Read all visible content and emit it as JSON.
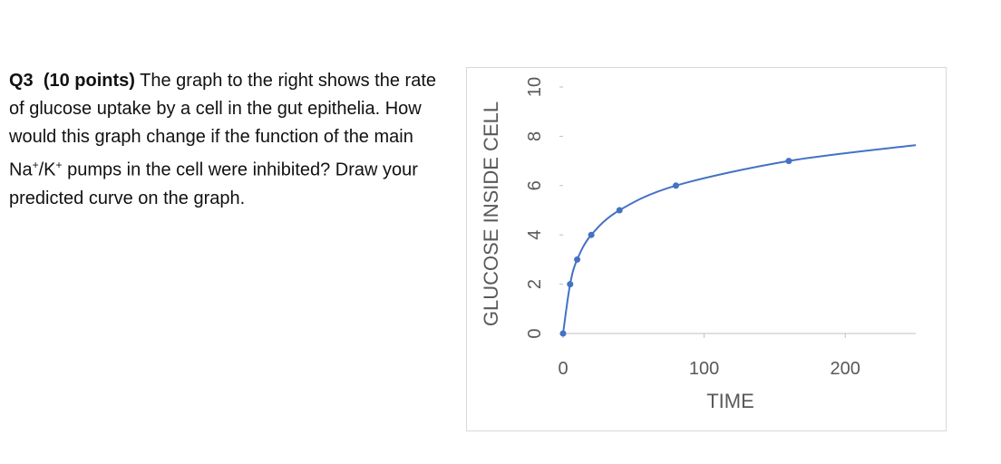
{
  "question": {
    "label": "Q3",
    "points": "(10 points)",
    "text_before_ions": "The graph to the right shows the rate of glucose uptake by a cell in the gut epithelia. How would this graph change if the function of the main Na",
    "sup1": "+",
    "slash_k": "/K",
    "sup2": "+",
    "text_after_ions": " pumps in the cell were inhibited? Draw your predicted curve on the graph."
  },
  "chart_data": {
    "type": "scatter",
    "title": "",
    "xlabel": "TIME",
    "ylabel": "GLUCOSE INSIDE CELL",
    "xlim": [
      0,
      250
    ],
    "ylim": [
      0,
      10
    ],
    "x_ticks": [
      0,
      100,
      200
    ],
    "y_ticks": [
      0,
      2,
      4,
      6,
      8,
      10
    ],
    "grid": false,
    "series": [
      {
        "points": [
          {
            "x": 0,
            "y": 0
          },
          {
            "x": 5,
            "y": 2
          },
          {
            "x": 10,
            "y": 3
          },
          {
            "x": 20,
            "y": 4
          },
          {
            "x": 40,
            "y": 5
          },
          {
            "x": 80,
            "y": 6
          },
          {
            "x": 160,
            "y": 7
          }
        ],
        "color": "#4472c4",
        "smooth_line": true
      }
    ]
  }
}
